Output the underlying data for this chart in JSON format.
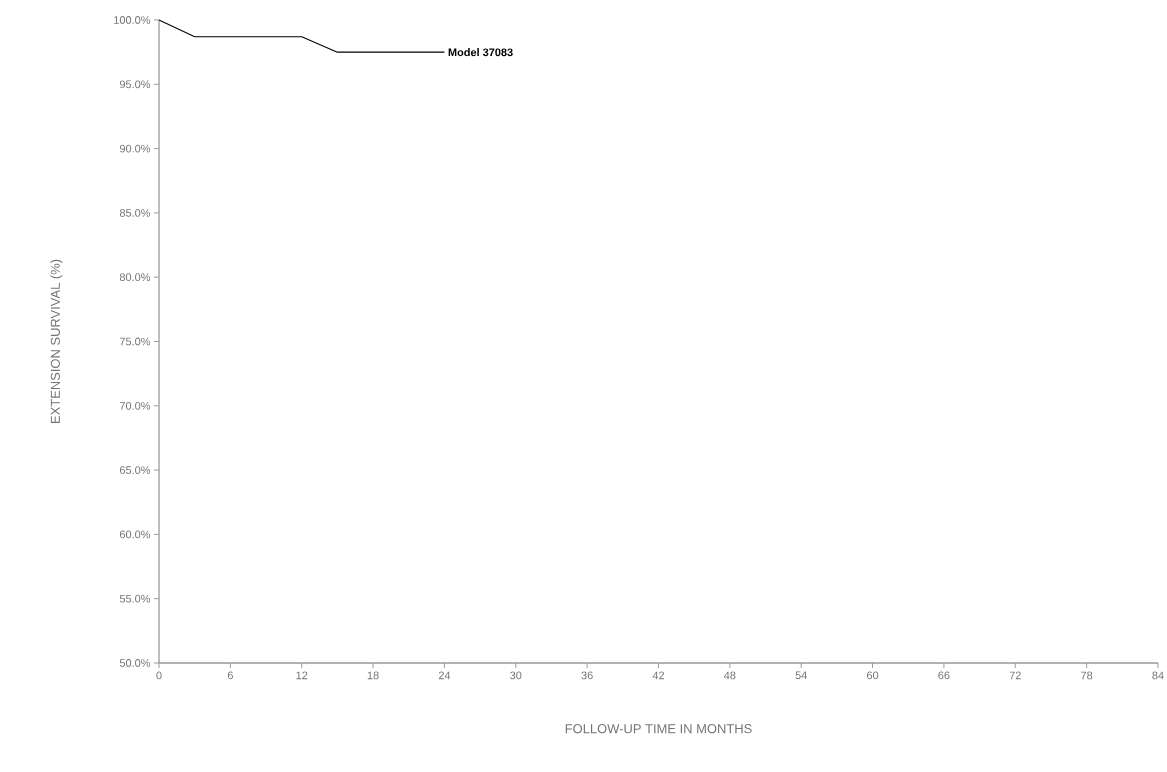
{
  "chart_data": {
    "type": "line",
    "xlabel": "FOLLOW-UP TIME IN MONTHS",
    "ylabel": "EXTENSION SURVIVAL (%)",
    "series": [
      {
        "name": "Model 37083",
        "color": "#000000",
        "x": [
          0,
          3,
          12,
          15,
          24
        ],
        "values": [
          100,
          98.7,
          98.7,
          97.5,
          97.5
        ]
      }
    ],
    "xlim": [
      0,
      84
    ],
    "xticks": [
      0,
      6,
      12,
      18,
      24,
      30,
      36,
      42,
      48,
      54,
      60,
      66,
      72,
      78,
      84
    ],
    "ylim": [
      50,
      100
    ],
    "yticks": [
      {
        "value": 50,
        "label": "50.0%"
      },
      {
        "value": 55,
        "label": "55.0%"
      },
      {
        "value": 60,
        "label": "60.0%"
      },
      {
        "value": 65,
        "label": "65.0%"
      },
      {
        "value": 70,
        "label": "70.0%"
      },
      {
        "value": 75,
        "label": "75.0%"
      },
      {
        "value": 80,
        "label": "80.0%"
      },
      {
        "value": 85,
        "label": "85.0%"
      },
      {
        "value": 90,
        "label": "90.0%"
      },
      {
        "value": 95,
        "label": "95.0%"
      },
      {
        "value": 100,
        "label": "100.0%"
      }
    ],
    "grid": false,
    "legend": false,
    "marker": "none",
    "line_style": "solid"
  }
}
